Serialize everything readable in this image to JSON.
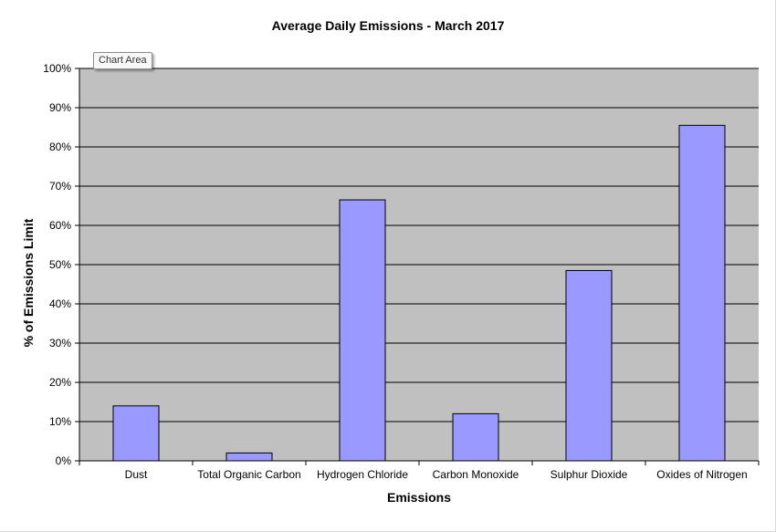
{
  "tooltip": {
    "label": "Chart Area"
  },
  "colors": {
    "plot_background": "#c0c0c0",
    "bar_fill": "#9999ff",
    "bar_stroke": "#000000",
    "gridline": "#000000"
  },
  "chart_data": {
    "type": "bar",
    "title": "Average Daily Emissions  - March 2017",
    "xlabel": "Emissions",
    "ylabel": "% of Emissions  Limit",
    "categories": [
      "Dust",
      "Total Organic Carbon",
      "Hydrogen Chloride",
      "Carbon Monoxide",
      "Sulphur Dioxide",
      "Oxides of Nitrogen"
    ],
    "values": [
      14,
      2,
      66.5,
      12,
      48.5,
      85.5
    ],
    "ylim": [
      0,
      100
    ],
    "yticks": [
      "0%",
      "10%",
      "20%",
      "30%",
      "40%",
      "50%",
      "60%",
      "70%",
      "80%",
      "90%",
      "100%"
    ],
    "grid": true,
    "legend": "none"
  }
}
